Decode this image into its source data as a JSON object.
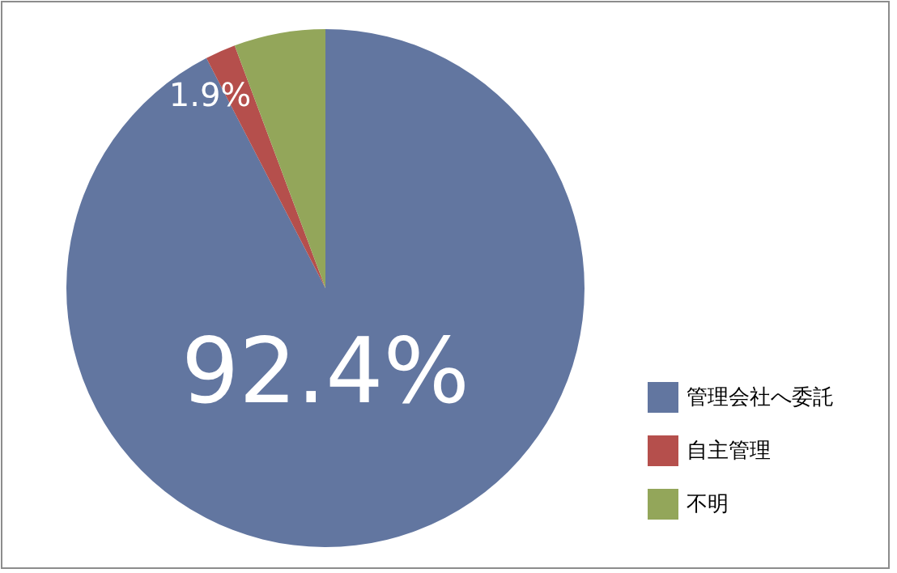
{
  "chart_data": {
    "type": "pie",
    "categories": [
      "管理会社へ委託",
      "自主管理",
      "不明"
    ],
    "values": [
      92.4,
      1.9,
      5.7
    ],
    "colors": [
      "#6276a0",
      "#b54f4c",
      "#93a65a"
    ],
    "value_labels": [
      "92.4%",
      "1.9%",
      null
    ],
    "legend": "right"
  }
}
